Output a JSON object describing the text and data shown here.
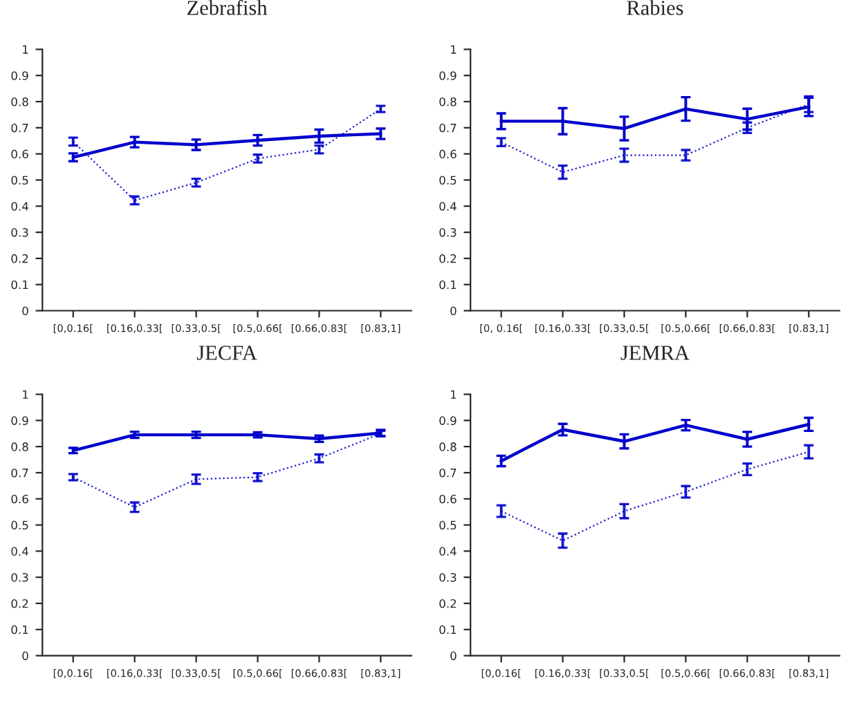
{
  "chart_data": [
    {
      "type": "line",
      "title": "Zebrafish",
      "categories": [
        "[0,0.16[",
        "[0.16,0.33[",
        "[0.33,0.5[",
        "[0.5,0.66[",
        "[0.66,0.83[",
        "[0.83,1]"
      ],
      "ylim": [
        0,
        1
      ],
      "yticks": [
        0,
        0.1,
        0.2,
        0.3,
        0.4,
        0.5,
        0.6,
        0.7,
        0.8,
        0.9,
        1
      ],
      "grid": false,
      "marker": "none",
      "series": [
        {
          "color": "#0000cc",
          "line_style": "solid",
          "values": [
            0.587,
            0.645,
            0.635,
            0.652,
            0.668,
            0.677
          ],
          "errors": [
            0.015,
            0.02,
            0.02,
            0.02,
            0.025,
            0.02
          ]
        },
        {
          "color": "#0000cc",
          "line_style": "dotted",
          "values": [
            0.647,
            0.422,
            0.49,
            0.582,
            0.617,
            0.772
          ],
          "errors": [
            0.015,
            0.015,
            0.015,
            0.015,
            0.015,
            0.012
          ]
        }
      ]
    },
    {
      "type": "line",
      "title": "Rabies",
      "categories": [
        "[0, 0.16[",
        "[0.16,0.33[",
        "[0.33,0.5[",
        "[0.5,0.66[",
        "[0.66,0.83[",
        "[0.83,1]"
      ],
      "ylim": [
        0,
        1
      ],
      "yticks": [
        0,
        0.1,
        0.2,
        0.3,
        0.4,
        0.5,
        0.6,
        0.7,
        0.8,
        0.9,
        1
      ],
      "grid": false,
      "marker": "none",
      "series": [
        {
          "color": "#0000cc",
          "line_style": "solid",
          "values": [
            0.725,
            0.725,
            0.697,
            0.772,
            0.733,
            0.78
          ],
          "errors": [
            0.03,
            0.05,
            0.045,
            0.045,
            0.04,
            0.035
          ]
        },
        {
          "color": "#0000cc",
          "line_style": "dotted",
          "values": [
            0.645,
            0.53,
            0.595,
            0.595,
            0.7,
            0.79
          ],
          "errors": [
            0.015,
            0.025,
            0.025,
            0.02,
            0.02,
            0.03
          ]
        }
      ]
    },
    {
      "type": "line",
      "title": "JECFA",
      "categories": [
        "[0,0.16[",
        "[0.16,0.33[",
        "[0.33,0.5[",
        "[0.5,0.66[",
        "[0.66,0.83[",
        "[0.83,1]"
      ],
      "ylim": [
        0,
        1
      ],
      "yticks": [
        0,
        0.1,
        0.2,
        0.3,
        0.4,
        0.5,
        0.6,
        0.7,
        0.8,
        0.9,
        1
      ],
      "grid": false,
      "marker": "none",
      "series": [
        {
          "color": "#0000cc",
          "line_style": "solid",
          "values": [
            0.785,
            0.845,
            0.845,
            0.845,
            0.83,
            0.852
          ],
          "errors": [
            0.01,
            0.012,
            0.012,
            0.01,
            0.012,
            0.012
          ]
        },
        {
          "color": "#0000cc",
          "line_style": "dotted",
          "values": [
            0.683,
            0.568,
            0.675,
            0.683,
            0.755,
            0.85
          ],
          "errors": [
            0.012,
            0.018,
            0.018,
            0.015,
            0.015,
            0.01
          ]
        }
      ]
    },
    {
      "type": "line",
      "title": "JEMRA",
      "categories": [
        "[0,0.16[",
        "[0.16,0.33[",
        "[0.33,0.5[",
        "[0.5,0.66[",
        "[0.66,0.83[",
        "[0.83,1]"
      ],
      "ylim": [
        0,
        1
      ],
      "yticks": [
        0,
        0.1,
        0.2,
        0.3,
        0.4,
        0.5,
        0.6,
        0.7,
        0.8,
        0.9,
        1
      ],
      "grid": false,
      "marker": "none",
      "series": [
        {
          "color": "#0000cc",
          "line_style": "solid",
          "values": [
            0.745,
            0.865,
            0.82,
            0.882,
            0.828,
            0.885
          ],
          "errors": [
            0.02,
            0.022,
            0.027,
            0.02,
            0.028,
            0.025
          ]
        },
        {
          "color": "#0000cc",
          "line_style": "dotted",
          "values": [
            0.553,
            0.44,
            0.553,
            0.627,
            0.713,
            0.78
          ],
          "errors": [
            0.022,
            0.027,
            0.027,
            0.022,
            0.022,
            0.025
          ]
        }
      ]
    }
  ]
}
